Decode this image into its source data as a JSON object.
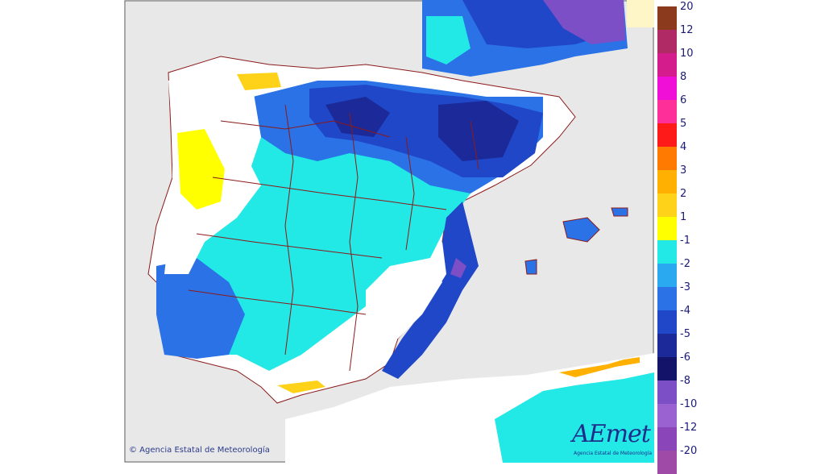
{
  "legend": {
    "positive": [
      {
        "label": "20",
        "color": "#8b3a1e"
      },
      {
        "label": "12",
        "color": "#b02a66"
      },
      {
        "label": "10",
        "color": "#d41c8c"
      },
      {
        "label": "8",
        "color": "#f00fd6"
      },
      {
        "label": "6",
        "color": "#ff2f9a"
      },
      {
        "label": "5",
        "color": "#ff1a1a"
      },
      {
        "label": "4",
        "color": "#ff7a00"
      },
      {
        "label": "3",
        "color": "#ffb000"
      },
      {
        "label": "2",
        "color": "#ffd21a"
      },
      {
        "label": "1",
        "color": "#ffff00"
      }
    ],
    "negative": [
      {
        "label": "-1",
        "color": "#22e8e6"
      },
      {
        "label": "-2",
        "color": "#2aa8f0"
      },
      {
        "label": "-3",
        "color": "#2a72e6"
      },
      {
        "label": "-4",
        "color": "#1f47c8"
      },
      {
        "label": "-5",
        "color": "#1b2a98"
      },
      {
        "label": "-6",
        "color": "#14136a"
      },
      {
        "label": "-8",
        "color": "#7d4fc6"
      },
      {
        "label": "-10",
        "color": "#9a62d0"
      },
      {
        "label": "-12",
        "color": "#8a45b8"
      },
      {
        "label": "-20",
        "color": "#a04aa8"
      }
    ]
  },
  "copyright": "© Agencia Estatal de Meteorología",
  "logo": {
    "name": "AEmet",
    "subtitle": "Agencia Estatal de Meteorología"
  },
  "colors": {
    "sea": "#e8e8e8",
    "land_neutral": "#ffffff",
    "border": "#8b1a1a"
  }
}
